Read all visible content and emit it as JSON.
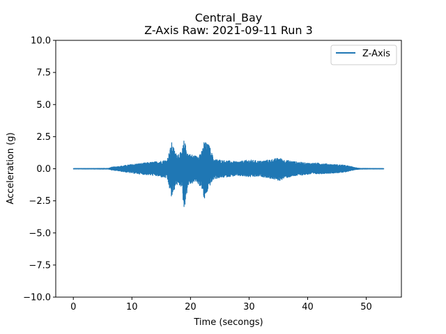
{
  "chart_data": {
    "type": "line",
    "title": "Central_Bay",
    "subtitle": "Z-Axis Raw: 2021-09-11 Run 3",
    "xlabel": "Time (secongs)",
    "ylabel": "Acceleration (g)",
    "xlim": [
      -3,
      56
    ],
    "ylim": [
      -10,
      10
    ],
    "xticks": [
      0,
      10,
      20,
      30,
      40,
      50
    ],
    "xtick_labels": [
      "0",
      "10",
      "20",
      "30",
      "40",
      "50"
    ],
    "yticks": [
      -10,
      -7.5,
      -5,
      -2.5,
      0,
      2.5,
      5,
      7.5,
      10
    ],
    "ytick_labels": [
      "−10.0",
      "−7.5",
      "−5.0",
      "−2.5",
      "0.0",
      "2.5",
      "5.0",
      "7.5",
      "10.0"
    ],
    "grid": false,
    "legend_position": "top-right",
    "series": [
      {
        "name": "Z-Axis",
        "color": "#1f77b4",
        "envelope": {
          "t": [
            0,
            6,
            6.5,
            8,
            10,
            12,
            14,
            16,
            16.8,
            17.5,
            18.5,
            18.9,
            19.6,
            21,
            22,
            22.3,
            23.2,
            24,
            26,
            28,
            30,
            32,
            34,
            35.2,
            36,
            38,
            40,
            42,
            44,
            46,
            47,
            48,
            49,
            53
          ],
          "upper": [
            0.02,
            0.03,
            0.12,
            0.2,
            0.35,
            0.45,
            0.55,
            0.7,
            2.05,
            1.2,
            1.3,
            2.25,
            1.2,
            1.0,
            1.4,
            2.15,
            1.85,
            0.75,
            0.65,
            0.55,
            0.7,
            0.6,
            0.75,
            0.85,
            0.7,
            0.55,
            0.45,
            0.45,
            0.35,
            0.3,
            0.22,
            0.1,
            0.03,
            0.02
          ],
          "lower": [
            -0.02,
            -0.03,
            -0.1,
            -0.2,
            -0.35,
            -0.45,
            -0.55,
            -0.75,
            -2.35,
            -1.25,
            -1.4,
            -3.25,
            -1.3,
            -1.0,
            -1.6,
            -2.55,
            -1.4,
            -0.8,
            -0.65,
            -0.55,
            -0.65,
            -0.6,
            -0.8,
            -0.95,
            -0.75,
            -0.55,
            -0.45,
            -0.4,
            -0.35,
            -0.3,
            -0.2,
            -0.08,
            -0.03,
            -0.02
          ]
        }
      }
    ]
  }
}
